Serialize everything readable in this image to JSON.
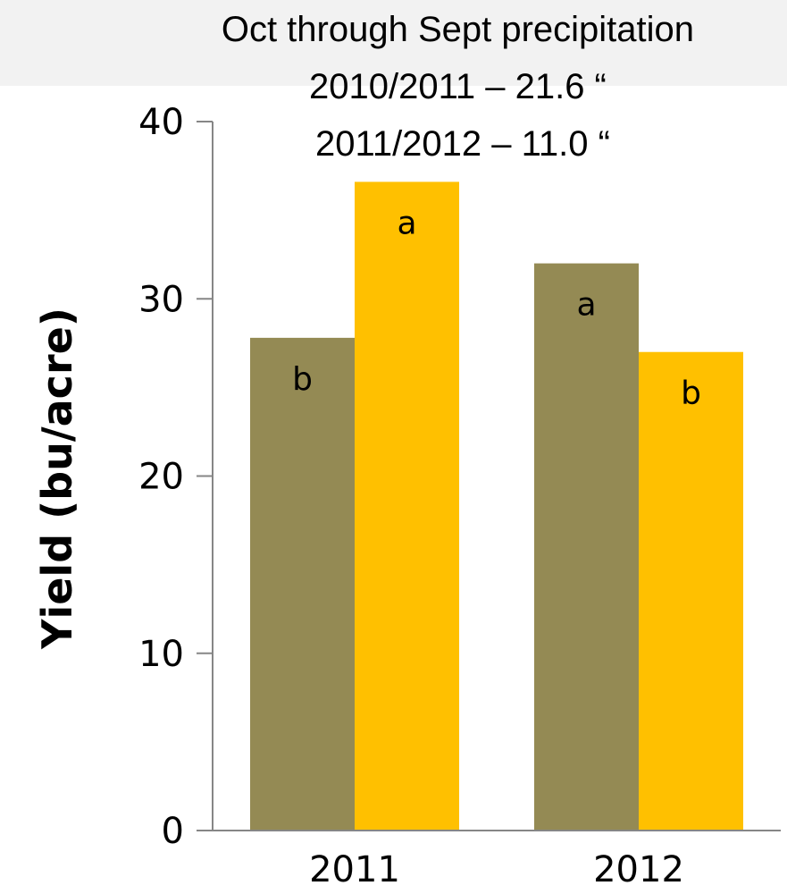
{
  "annotation": {
    "lines": [
      "Oct through Sept precipitation",
      "2010/2011 – 21.6 “",
      "2011/2012 – 11.0 “"
    ]
  },
  "chart_data": {
    "type": "bar",
    "title": "",
    "xlabel": "",
    "ylabel": "Yield (bu/acre)",
    "ylim": [
      0,
      40
    ],
    "yticks": [
      0,
      10,
      20,
      30,
      40
    ],
    "grid": false,
    "legend": "none",
    "categories": [
      "2011",
      "2012"
    ],
    "series": [
      {
        "color": "#948a54",
        "values": [
          27.8,
          32.0
        ],
        "labels": [
          "b",
          "a"
        ]
      },
      {
        "color": "#ffc000",
        "values": [
          36.6,
          27.0
        ],
        "labels": [
          "a",
          "b"
        ]
      }
    ]
  }
}
